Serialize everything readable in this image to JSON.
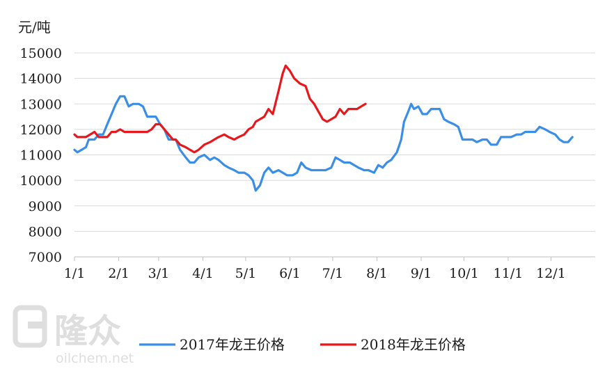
{
  "chart_data": {
    "type": "line",
    "y_unit": "元/吨",
    "ylim": [
      7000,
      15000
    ],
    "y_ticks": [
      7000,
      8000,
      9000,
      10000,
      11000,
      12000,
      13000,
      14000,
      15000
    ],
    "x_ticks": [
      "1/1",
      "2/1",
      "3/1",
      "4/1",
      "5/1",
      "6/1",
      "7/1",
      "8/1",
      "9/1",
      "10/1",
      "11/1",
      "12/1"
    ],
    "grid": "horizontal",
    "legend_position": "bottom",
    "series": [
      {
        "name": "2017年龙王价格",
        "color": "#3a8ee6",
        "points": [
          [
            "1/1",
            11200
          ],
          [
            "1/3",
            11100
          ],
          [
            "1/6",
            11200
          ],
          [
            "1/9",
            11300
          ],
          [
            "1/11",
            11600
          ],
          [
            "1/15",
            11600
          ],
          [
            "1/18",
            11800
          ],
          [
            "1/21",
            11800
          ],
          [
            "1/24",
            12200
          ],
          [
            "1/27",
            12600
          ],
          [
            "1/30",
            13000
          ],
          [
            "2/2",
            13300
          ],
          [
            "2/5",
            13300
          ],
          [
            "2/8",
            12900
          ],
          [
            "2/11",
            13000
          ],
          [
            "2/15",
            13000
          ],
          [
            "2/18",
            12900
          ],
          [
            "2/21",
            12500
          ],
          [
            "2/24",
            12500
          ],
          [
            "2/27",
            12500
          ],
          [
            "3/2",
            12200
          ],
          [
            "3/5",
            12000
          ],
          [
            "3/8",
            11600
          ],
          [
            "3/11",
            11600
          ],
          [
            "3/13",
            11600
          ],
          [
            "3/16",
            11200
          ],
          [
            "3/20",
            10900
          ],
          [
            "3/23",
            10700
          ],
          [
            "3/26",
            10700
          ],
          [
            "3/29",
            10900
          ],
          [
            "4/2",
            11000
          ],
          [
            "4/6",
            10800
          ],
          [
            "4/9",
            10900
          ],
          [
            "4/12",
            10800
          ],
          [
            "4/16",
            10600
          ],
          [
            "4/19",
            10500
          ],
          [
            "4/23",
            10400
          ],
          [
            "4/26",
            10300
          ],
          [
            "4/30",
            10300
          ],
          [
            "5/3",
            10200
          ],
          [
            "5/6",
            10000
          ],
          [
            "5/8",
            9600
          ],
          [
            "5/11",
            9800
          ],
          [
            "5/14",
            10300
          ],
          [
            "5/17",
            10500
          ],
          [
            "5/20",
            10300
          ],
          [
            "5/24",
            10400
          ],
          [
            "5/27",
            10300
          ],
          [
            "5/30",
            10200
          ],
          [
            "6/3",
            10200
          ],
          [
            "6/6",
            10300
          ],
          [
            "6/9",
            10700
          ],
          [
            "6/12",
            10500
          ],
          [
            "6/16",
            10400
          ],
          [
            "6/19",
            10400
          ],
          [
            "6/23",
            10400
          ],
          [
            "6/26",
            10400
          ],
          [
            "6/30",
            10500
          ],
          [
            "7/3",
            10900
          ],
          [
            "7/6",
            10800
          ],
          [
            "7/9",
            10700
          ],
          [
            "7/13",
            10700
          ],
          [
            "7/16",
            10600
          ],
          [
            "7/19",
            10500
          ],
          [
            "7/23",
            10400
          ],
          [
            "7/26",
            10400
          ],
          [
            "7/30",
            10300
          ],
          [
            "8/2",
            10600
          ],
          [
            "8/5",
            10500
          ],
          [
            "8/8",
            10700
          ],
          [
            "8/11",
            10800
          ],
          [
            "8/15",
            11100
          ],
          [
            "8/18",
            11600
          ],
          [
            "8/20",
            12300
          ],
          [
            "8/23",
            12700
          ],
          [
            "8/25",
            13000
          ],
          [
            "8/27",
            12800
          ],
          [
            "8/30",
            12900
          ],
          [
            "9/2",
            12600
          ],
          [
            "9/5",
            12600
          ],
          [
            "9/8",
            12800
          ],
          [
            "9/11",
            12800
          ],
          [
            "9/14",
            12800
          ],
          [
            "9/17",
            12400
          ],
          [
            "9/20",
            12300
          ],
          [
            "9/24",
            12200
          ],
          [
            "9/27",
            12100
          ],
          [
            "9/30",
            11600
          ],
          [
            "10/4",
            11600
          ],
          [
            "10/7",
            11600
          ],
          [
            "10/10",
            11500
          ],
          [
            "10/14",
            11600
          ],
          [
            "10/17",
            11600
          ],
          [
            "10/20",
            11400
          ],
          [
            "10/24",
            11400
          ],
          [
            "10/27",
            11700
          ],
          [
            "10/31",
            11700
          ],
          [
            "11/3",
            11700
          ],
          [
            "11/7",
            11800
          ],
          [
            "11/10",
            11800
          ],
          [
            "11/13",
            11900
          ],
          [
            "11/17",
            11900
          ],
          [
            "11/20",
            11900
          ],
          [
            "11/23",
            12100
          ],
          [
            "11/27",
            12000
          ],
          [
            "11/30",
            11900
          ],
          [
            "12/4",
            11800
          ],
          [
            "12/7",
            11600
          ],
          [
            "12/10",
            11500
          ],
          [
            "12/13",
            11500
          ],
          [
            "12/16",
            11700
          ]
        ]
      },
      {
        "name": "2018年龙王价格",
        "color": "#e8171c",
        "points": [
          [
            "1/1",
            11800
          ],
          [
            "1/3",
            11700
          ],
          [
            "1/6",
            11700
          ],
          [
            "1/9",
            11700
          ],
          [
            "1/12",
            11800
          ],
          [
            "1/15",
            11900
          ],
          [
            "1/18",
            11700
          ],
          [
            "1/21",
            11700
          ],
          [
            "1/24",
            11700
          ],
          [
            "1/27",
            11900
          ],
          [
            "1/30",
            11900
          ],
          [
            "2/2",
            12000
          ],
          [
            "2/5",
            11900
          ],
          [
            "2/8",
            11900
          ],
          [
            "2/11",
            11900
          ],
          [
            "2/15",
            11900
          ],
          [
            "2/18",
            11900
          ],
          [
            "2/21",
            11900
          ],
          [
            "2/24",
            12000
          ],
          [
            "2/27",
            12200
          ],
          [
            "3/2",
            12200
          ],
          [
            "3/5",
            12000
          ],
          [
            "3/8",
            11800
          ],
          [
            "3/11",
            11600
          ],
          [
            "3/13",
            11600
          ],
          [
            "3/16",
            11400
          ],
          [
            "3/20",
            11300
          ],
          [
            "3/23",
            11200
          ],
          [
            "3/26",
            11100
          ],
          [
            "3/29",
            11200
          ],
          [
            "4/2",
            11400
          ],
          [
            "4/6",
            11500
          ],
          [
            "4/9",
            11600
          ],
          [
            "4/12",
            11700
          ],
          [
            "4/16",
            11800
          ],
          [
            "4/19",
            11700
          ],
          [
            "4/23",
            11600
          ],
          [
            "4/26",
            11700
          ],
          [
            "4/30",
            11800
          ],
          [
            "5/3",
            12000
          ],
          [
            "5/6",
            12100
          ],
          [
            "5/8",
            12300
          ],
          [
            "5/11",
            12400
          ],
          [
            "5/14",
            12500
          ],
          [
            "5/17",
            12800
          ],
          [
            "5/20",
            12600
          ],
          [
            "5/24",
            13500
          ],
          [
            "5/27",
            14200
          ],
          [
            "5/29",
            14500
          ],
          [
            "6/1",
            14300
          ],
          [
            "6/4",
            14000
          ],
          [
            "6/8",
            13800
          ],
          [
            "6/12",
            13700
          ],
          [
            "6/15",
            13200
          ],
          [
            "6/18",
            13000
          ],
          [
            "6/21",
            12700
          ],
          [
            "6/24",
            12400
          ],
          [
            "6/27",
            12300
          ],
          [
            "6/30",
            12400
          ],
          [
            "7/3",
            12500
          ],
          [
            "7/6",
            12800
          ],
          [
            "7/9",
            12600
          ],
          [
            "7/12",
            12800
          ],
          [
            "7/15",
            12800
          ],
          [
            "7/18",
            12800
          ],
          [
            "7/21",
            12900
          ],
          [
            "7/24",
            13000
          ]
        ]
      }
    ]
  },
  "watermark": {
    "brand": "隆众",
    "site": "oilchem.net"
  }
}
